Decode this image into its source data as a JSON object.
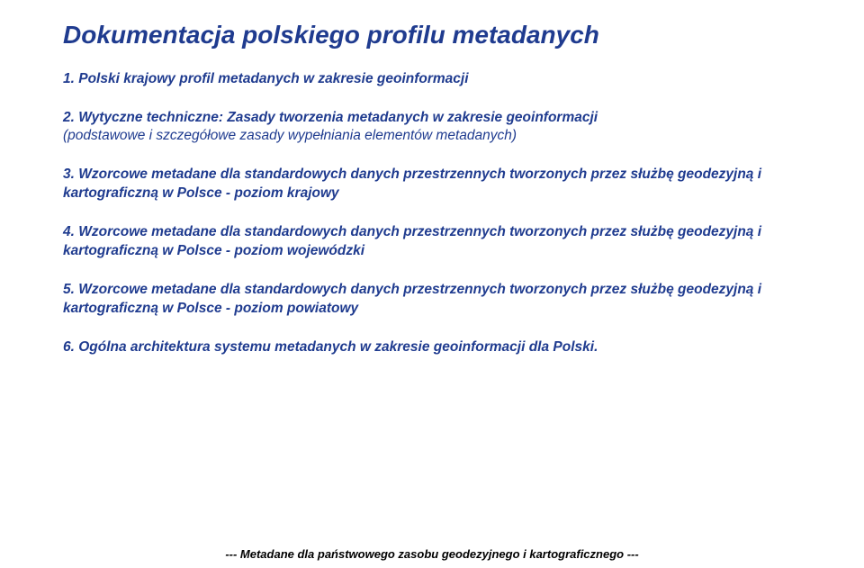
{
  "colors": {
    "heading": "#1f3b8f",
    "body": "#1f3b8f",
    "footer": "#000000",
    "background": "#ffffff"
  },
  "typography": {
    "title_fontsize": 28,
    "body_fontsize": 15.5,
    "footer_fontsize": 13,
    "font_family": "Verdana",
    "font_style": "italic",
    "font_weight": "bold"
  },
  "title": "Dokumentacja polskiego profilu metadanych",
  "items": [
    {
      "text": "1. Polski krajowy profil metadanych w zakresie geoinformacji"
    },
    {
      "text": "2. Wytyczne techniczne: Zasady tworzenia metadanych w zakresie geoinformacji",
      "paren": "(podstawowe i szczegółowe zasady wypełniania elementów metadanych)"
    },
    {
      "text": "3. Wzorcowe metadane dla standardowych danych przestrzennych tworzonych przez służbę geodezyjną i kartograficzną w Polsce - poziom krajowy"
    },
    {
      "text": "4. Wzorcowe metadane dla standardowych danych przestrzennych tworzonych przez służbę geodezyjną i kartograficzną w Polsce - poziom wojewódzki"
    },
    {
      "text": "5. Wzorcowe metadane dla standardowych danych przestrzennych tworzonych przez służbę geodezyjną i kartograficzną w Polsce - poziom powiatowy"
    },
    {
      "text": "6. Ogólna architektura systemu metadanych w zakresie geoinformacji dla Polski."
    }
  ],
  "footer": "--- Metadane dla państwowego zasobu geodezyjnego i kartograficznego ---"
}
